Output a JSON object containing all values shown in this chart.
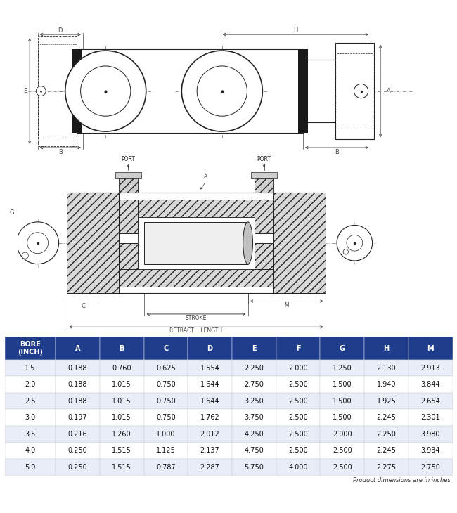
{
  "table_header": [
    "BORE\n(INCH)",
    "A",
    "B",
    "C",
    "D",
    "E",
    "F",
    "G",
    "H",
    "M"
  ],
  "table_rows": [
    [
      "1.5",
      "0.188",
      "0.760",
      "0.625",
      "1.554",
      "2.250",
      "2.000",
      "1.250",
      "2.130",
      "2.913"
    ],
    [
      "2.0",
      "0.188",
      "1.015",
      "0.750",
      "1.644",
      "2.750",
      "2.500",
      "1.500",
      "1.940",
      "3.844"
    ],
    [
      "2.5",
      "0.188",
      "1.015",
      "0.750",
      "1.644",
      "3.250",
      "2.500",
      "1.500",
      "1.925",
      "2.654"
    ],
    [
      "3.0",
      "0.197",
      "1.015",
      "0.750",
      "1.762",
      "3.750",
      "2.500",
      "1.500",
      "2.245",
      "2.301"
    ],
    [
      "3.5",
      "0.216",
      "1.260",
      "1.000",
      "2.012",
      "4.250",
      "2.500",
      "2.000",
      "2.250",
      "3.980"
    ],
    [
      "4.0",
      "0.250",
      "1.515",
      "1.125",
      "2.137",
      "4.750",
      "2.500",
      "2.500",
      "2.245",
      "3.934"
    ],
    [
      "5.0",
      "0.250",
      "1.515",
      "0.787",
      "2.287",
      "5.750",
      "4.000",
      "2.500",
      "2.275",
      "2.750"
    ]
  ],
  "footer_note": "Product dimensions are in inches",
  "header_bg": "#1f3d8a",
  "header_fg": "#ffffff",
  "row_bg_alt": "#e8edf8",
  "row_bg_norm": "#ffffff",
  "lc": "#222222",
  "dc": "#444444",
  "hatch_color": "#888888"
}
